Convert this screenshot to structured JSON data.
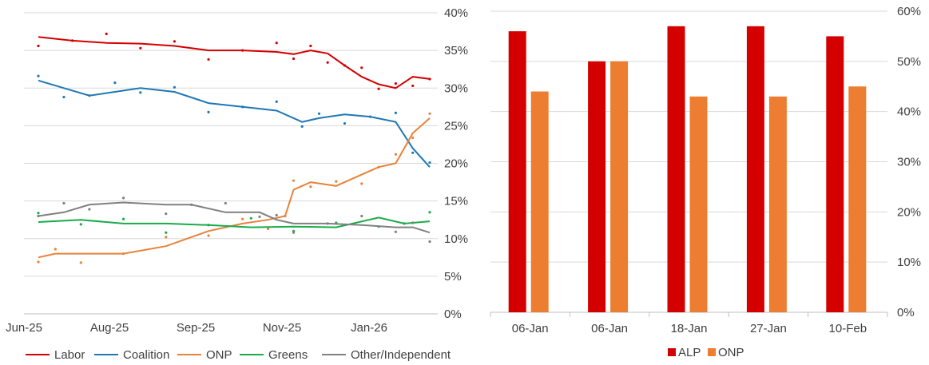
{
  "colors": {
    "labor": "#d40000",
    "coalition": "#1f77b4",
    "onp": "#e8823a",
    "greens": "#1aab4b",
    "other": "#808080",
    "alp": "#d40000",
    "onp_bar": "#ed7d31",
    "grid": "#d9d9d9"
  },
  "chart_data": [
    {
      "type": "line",
      "title": "",
      "xlabel": "",
      "ylabel": "",
      "ylim": [
        0,
        40
      ],
      "y_axis_position": "right",
      "y_ticks": [
        "0%",
        "5%",
        "10%",
        "15%",
        "20%",
        "25%",
        "30%",
        "35%",
        "40%"
      ],
      "x_ticks": [
        "Jun-25",
        "Aug-25",
        "Sep-25",
        "Nov-25",
        "Jan-26"
      ],
      "legend_position": "bottom",
      "series": [
        {
          "name": "Labor",
          "color_key": "labor",
          "x": [
            0,
            0.4,
            0.8,
            1.2,
            1.6,
            2.0,
            2.4,
            2.8,
            3.0,
            3.2,
            3.4,
            3.6,
            3.8,
            4.0,
            4.2,
            4.4,
            4.6
          ],
          "values": [
            36.8,
            36.3,
            36.0,
            35.9,
            35.6,
            35.0,
            35.0,
            34.8,
            34.5,
            35.0,
            34.6,
            33.0,
            31.5,
            30.5,
            30.0,
            31.5,
            31.2
          ]
        },
        {
          "name": "Coalition",
          "color_key": "coalition",
          "x": [
            0,
            0.3,
            0.6,
            0.9,
            1.2,
            1.6,
            2.0,
            2.4,
            2.8,
            3.1,
            3.3,
            3.6,
            3.9,
            4.2,
            4.4,
            4.6
          ],
          "values": [
            31.0,
            30.0,
            29.0,
            29.5,
            30.0,
            29.5,
            28.0,
            27.5,
            27.0,
            25.5,
            26.0,
            26.5,
            26.2,
            25.5,
            22.0,
            19.5
          ]
        },
        {
          "name": "ONP",
          "color_key": "onp",
          "x": [
            0,
            0.2,
            0.5,
            1.0,
            1.5,
            2.0,
            2.4,
            2.7,
            2.9,
            3.0,
            3.2,
            3.5,
            3.8,
            4.0,
            4.2,
            4.4,
            4.6
          ],
          "values": [
            7.5,
            8.0,
            8.0,
            8.0,
            9.0,
            11.0,
            12.0,
            12.5,
            13.0,
            16.5,
            17.5,
            17.0,
            18.5,
            19.5,
            20.0,
            24.0,
            26.0
          ]
        },
        {
          "name": "Greens",
          "color_key": "greens",
          "x": [
            0,
            0.5,
            1.0,
            1.5,
            2.0,
            2.5,
            3.0,
            3.5,
            4.0,
            4.3,
            4.6
          ],
          "values": [
            12.2,
            12.5,
            12.0,
            12.0,
            11.8,
            11.5,
            11.6,
            11.5,
            12.8,
            12.0,
            12.3
          ]
        },
        {
          "name": "Other/Independent",
          "color_key": "other",
          "x": [
            0,
            0.3,
            0.6,
            1.0,
            1.5,
            1.8,
            2.2,
            2.6,
            2.8,
            3.0,
            3.4,
            3.8,
            4.2,
            4.4,
            4.6
          ],
          "values": [
            13.0,
            13.5,
            14.5,
            14.8,
            14.5,
            14.5,
            13.5,
            13.5,
            12.5,
            12.0,
            12.0,
            11.8,
            11.5,
            11.5,
            10.8
          ]
        }
      ]
    },
    {
      "type": "bar",
      "title": "",
      "xlabel": "",
      "ylabel": "",
      "ylim": [
        0,
        60
      ],
      "y_axis_position": "right",
      "y_ticks": [
        "0%",
        "10%",
        "20%",
        "30%",
        "40%",
        "50%",
        "60%"
      ],
      "categories": [
        "06-Jan",
        "06-Jan",
        "18-Jan",
        "27-Jan",
        "10-Feb"
      ],
      "legend_position": "bottom",
      "series": [
        {
          "name": "ALP",
          "color_key": "alp",
          "values": [
            56,
            50,
            57,
            57,
            55
          ]
        },
        {
          "name": "ONP",
          "color_key": "onp_bar",
          "values": [
            44,
            50,
            43,
            43,
            45
          ]
        }
      ]
    }
  ]
}
